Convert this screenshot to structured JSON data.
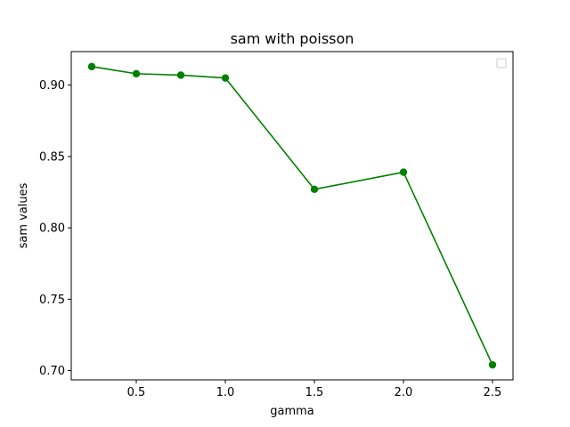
{
  "chart_data": {
    "type": "line",
    "title": "sam with poisson",
    "xlabel": "gamma",
    "ylabel": "sam values",
    "x": [
      0.25,
      0.5,
      0.75,
      1.0,
      1.5,
      2.0,
      2.5
    ],
    "series": [
      {
        "values": [
          0.913,
          0.908,
          0.907,
          0.905,
          0.827,
          0.839,
          0.704
        ],
        "color": "#008000",
        "marker": "circle"
      }
    ],
    "xlim": [
      0.135,
      2.615
    ],
    "ylim": [
      0.6935,
      0.9235
    ],
    "xticks": [
      0.5,
      1.0,
      1.5,
      2.0,
      2.5
    ],
    "xtick_labels": [
      "0.5",
      "1.0",
      "1.5",
      "2.0",
      "2.5"
    ],
    "yticks": [
      0.7,
      0.75,
      0.8,
      0.85,
      0.9
    ],
    "ytick_labels": [
      "0.70",
      "0.75",
      "0.80",
      "0.85",
      "0.90"
    ],
    "grid": false,
    "legend": {
      "placement": "top-right",
      "entries": []
    }
  }
}
